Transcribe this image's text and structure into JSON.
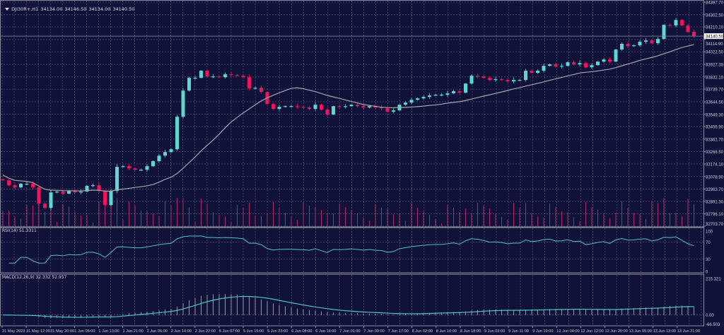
{
  "header": {
    "symbol": "DJI30R+,H1",
    "open": "34134.00",
    "high": "34146.50",
    "low": "34134.00",
    "close": "34140.50"
  },
  "current_price": "34140.50",
  "colors": {
    "background": "#10123a",
    "grid": "#5c5e80",
    "bull": "#5fd6d2",
    "bear": "#f0145a",
    "moving_average": "#a4a4ac",
    "rsi_line": "#4cc4c4",
    "macd_signal": "#4cc4c4",
    "macd_histogram": "#b4b4bc",
    "volume": "#b02a66",
    "axis_text": "#c8c8d8"
  },
  "chart_data": [
    {
      "type": "candlestick",
      "title": "DJI30R+,H1",
      "overlay": "moving average",
      "volume": true,
      "grid": true,
      "ylim": [
        32703.7,
        34397.7
      ],
      "y_ticks": [
        "34397.70",
        "34302.50",
        "34210.10",
        "34114.90",
        "34022.50",
        "33927.30",
        "33832.10",
        "33739.70",
        "33644.50",
        "33549.30",
        "33456.90",
        "33361.70",
        "33266.50",
        "33174.10",
        "33078.90",
        "32983.70",
        "32891.30",
        "32796.10",
        "32703.70"
      ],
      "x_ticks": [
        "31 May 2023",
        "31 May 12:00",
        "31 May 20:00",
        "1 Jun 05:00",
        "1 Jun 13:00",
        "1 Jun 21:00",
        "2 Jun 06:00",
        "2 Jun 14:00",
        "2 Jun 22:00",
        "5 Jun 07:00",
        "5 Jun 15:00",
        "5 Jun 23:00",
        "6 Jun 08:00",
        "6 Jun 16:00",
        "7 Jun 01:00",
        "7 Jun 09:00",
        "7 Jun 17:00",
        "8 Jun 02:00",
        "8 Jun 10:00",
        "8 Jun 18:00",
        "9 Jun 03:00",
        "9 Jun 11:00",
        "9 Jun 19:00",
        "12 Jun 04:00",
        "12 Jun 12:00",
        "12 Jun 20:00",
        "13 Jun 05:00",
        "13 Jun 13:00",
        "13 Jun 21:00"
      ],
      "close": [
        33050,
        33013,
        32997,
        33024,
        33024,
        32997,
        32874,
        32842,
        32959,
        32965,
        32949,
        32970,
        32959,
        32965,
        33008,
        33013,
        32970,
        32863,
        32970,
        33152,
        33157,
        33141,
        33130,
        33130,
        33157,
        33195,
        33237,
        33264,
        33285,
        33531,
        33729,
        33825,
        33825,
        33879,
        33836,
        33836,
        33830,
        33852,
        33847,
        33841,
        33830,
        33745,
        33750,
        33718,
        33627,
        33590,
        33606,
        33611,
        33611,
        33606,
        33601,
        33590,
        33622,
        33585,
        33547,
        33611,
        33606,
        33611,
        33622,
        33611,
        33601,
        33611,
        33601,
        33595,
        33569,
        33579,
        33622,
        33638,
        33659,
        33670,
        33681,
        33692,
        33697,
        33697,
        33708,
        33724,
        33713,
        33782,
        33841,
        33836,
        33825,
        33809,
        33815,
        33809,
        33798,
        33809,
        33809,
        33879,
        33863,
        33879,
        33916,
        33927,
        33911,
        33916,
        33943,
        33927,
        33937,
        33905,
        33921,
        33948,
        33964,
        33948,
        34039,
        34082,
        34066,
        34071,
        34098,
        34108,
        34087,
        34119,
        34226,
        34221,
        34263,
        34221,
        34173,
        34140.5
      ]
    },
    {
      "type": "line",
      "title": "RSI(14) 51.3311",
      "ylim": [
        0,
        100
      ],
      "y_ticks": [
        "100",
        "70",
        "30",
        "0"
      ],
      "levels": [
        70,
        30
      ]
    },
    {
      "type": "bar+line",
      "title": "MACD(12,26,9) 32.332 52.957",
      "ylim": [
        -66.503,
        215.321
      ],
      "y_ticks": [
        "215.321",
        "0.00",
        "-66.503"
      ]
    }
  ]
}
